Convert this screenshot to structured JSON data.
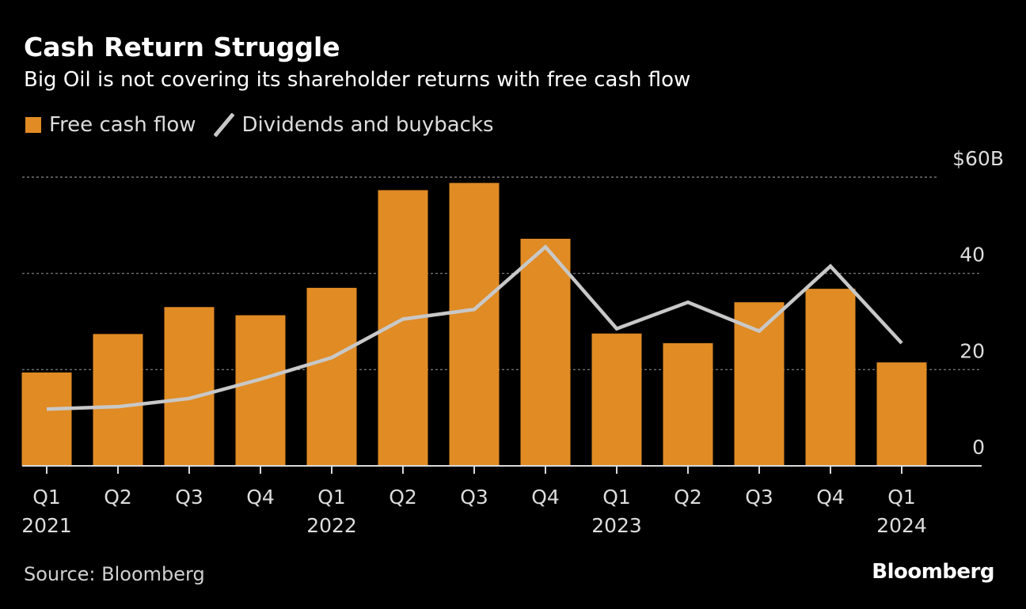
{
  "chart_data": {
    "type": "bar",
    "title": "Cash Return Struggle",
    "subtitle": "Big Oil is not covering its shareholder returns with free cash flow",
    "categories": [
      {
        "quarter": "Q1",
        "year": "2021"
      },
      {
        "quarter": "Q2",
        "year": ""
      },
      {
        "quarter": "Q3",
        "year": ""
      },
      {
        "quarter": "Q4",
        "year": ""
      },
      {
        "quarter": "Q1",
        "year": "2022"
      },
      {
        "quarter": "Q2",
        "year": ""
      },
      {
        "quarter": "Q3",
        "year": ""
      },
      {
        "quarter": "Q4",
        "year": ""
      },
      {
        "quarter": "Q1",
        "year": "2023"
      },
      {
        "quarter": "Q2",
        "year": ""
      },
      {
        "quarter": "Q3",
        "year": ""
      },
      {
        "quarter": "Q4",
        "year": ""
      },
      {
        "quarter": "Q1",
        "year": "2024"
      }
    ],
    "series": [
      {
        "name": "Free cash flow",
        "type": "bar",
        "color": "#e08b24",
        "values": [
          19.4,
          27.4,
          33.0,
          31.3,
          37.0,
          57.3,
          58.8,
          47.2,
          27.5,
          25.5,
          34.0,
          36.8,
          21.5
        ]
      },
      {
        "name": "Dividends and buybacks",
        "type": "line",
        "color": "#c8c8c8",
        "values": [
          11.8,
          12.3,
          14.0,
          18.0,
          22.5,
          30.5,
          32.5,
          45.5,
          28.5,
          34.0,
          28.0,
          41.5,
          25.5
        ]
      }
    ],
    "y_axis": {
      "position": "right",
      "ylim": [
        0,
        60
      ],
      "ticks": [
        0,
        20,
        40,
        60
      ],
      "tick_labels": [
        "0",
        "20",
        "40",
        "$60B"
      ]
    },
    "grid": true,
    "legend": "top-left"
  },
  "source": "Source: Bloomberg",
  "brand": "Bloomberg"
}
